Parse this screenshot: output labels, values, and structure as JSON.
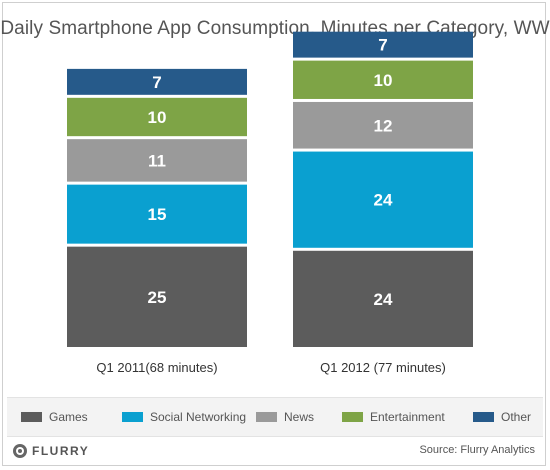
{
  "chart_data": {
    "type": "bar",
    "stacked": true,
    "title": "Daily Smartphone App Consumption, Minutes per Category, WW",
    "categories": [
      "Q1 2011(68 minutes)",
      "Q1 2012 (77 minutes)"
    ],
    "series": [
      {
        "name": "Games",
        "values": [
          25,
          24
        ],
        "color": "#5c5c5c"
      },
      {
        "name": "Social Networking",
        "values": [
          15,
          24
        ],
        "color": "#0aa0d0"
      },
      {
        "name": "News",
        "values": [
          11,
          12
        ],
        "color": "#9a9a9a"
      },
      {
        "name": "Entertainment",
        "values": [
          10,
          10
        ],
        "color": "#7ea446"
      },
      {
        "name": "Other",
        "values": [
          7,
          7
        ],
        "color": "#265a8a"
      }
    ],
    "legend_position": "bottom",
    "grid": false
  },
  "footer": {
    "logo_text": "FLURRY",
    "source": "Source: Flurry Analytics"
  }
}
